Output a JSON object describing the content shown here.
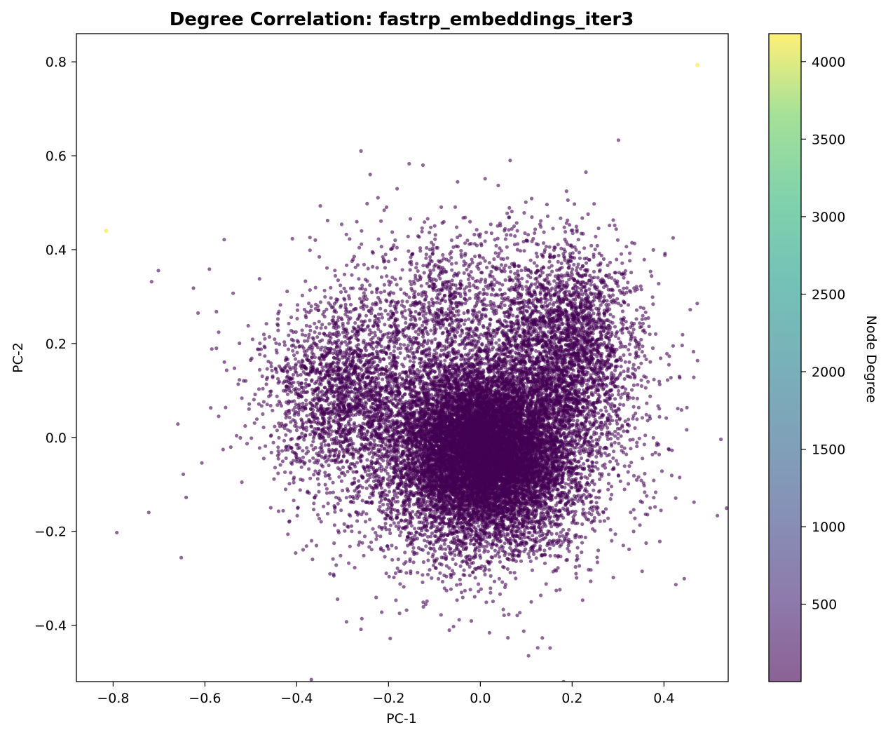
{
  "chart_data": {
    "type": "scatter",
    "title": "Degree Correlation: fastrp_embeddings_iter3",
    "xlabel": "PC-1",
    "ylabel": "PC-2",
    "xlim": [
      -0.88,
      0.54
    ],
    "ylim": [
      -0.52,
      0.86
    ],
    "x_ticks": [
      -0.8,
      -0.6,
      -0.4,
      -0.2,
      0.0,
      0.2,
      0.4
    ],
    "x_tick_labels": [
      "−0.8",
      "−0.6",
      "−0.4",
      "−0.2",
      "0.0",
      "0.2",
      "0.4"
    ],
    "y_ticks": [
      -0.4,
      -0.2,
      0.0,
      0.2,
      0.4,
      0.6,
      0.8
    ],
    "y_tick_labels": [
      "−0.4",
      "−0.2",
      "0.0",
      "0.2",
      "0.4",
      "0.6",
      "0.8"
    ],
    "grid": false,
    "colormap": "viridis",
    "point_alpha": 0.6,
    "colorbar": {
      "label": "Node Degree",
      "range": [
        1,
        4180
      ],
      "ticks": [
        500,
        1000,
        1500,
        2000,
        2500,
        3000,
        3500,
        4000
      ],
      "tick_labels": [
        "500",
        "1000",
        "1500",
        "2000",
        "2500",
        "3000",
        "3500",
        "4000"
      ]
    },
    "main_cluster": {
      "description_center": [
        0.02,
        -0.03
      ],
      "approx_count": 12000,
      "degree": "low (≈1–50)"
    },
    "highlighted_points": [
      {
        "x": -0.815,
        "y": 0.44,
        "degree": 4100
      },
      {
        "x": 0.473,
        "y": 0.793,
        "degree": 4180
      }
    ],
    "outlier_points": [
      {
        "x": -0.26,
        "y": 0.61
      },
      {
        "x": 0.065,
        "y": 0.59
      },
      {
        "x": 0.23,
        "y": 0.565
      },
      {
        "x": -0.155,
        "y": 0.583
      },
      {
        "x": -0.125,
        "y": 0.58
      },
      {
        "x": -0.24,
        "y": 0.56
      },
      {
        "x": -0.625,
        "y": 0.318
      },
      {
        "x": -0.615,
        "y": 0.265
      },
      {
        "x": -0.575,
        "y": 0.268
      },
      {
        "x": -0.57,
        "y": 0.045
      },
      {
        "x": -0.575,
        "y": 0.19
      },
      {
        "x": 0.465,
        "y": 0.128
      },
      {
        "x": 0.42,
        "y": 0.425
      },
      {
        "x": 0.42,
        "y": 0.195
      },
      {
        "x": 0.105,
        "y": -0.465
      },
      {
        "x": 0.135,
        "y": -0.427
      },
      {
        "x": 0.125,
        "y": -0.448
      },
      {
        "x": 0.385,
        "y": -0.012
      },
      {
        "x": 0.37,
        "y": -0.15
      }
    ]
  }
}
